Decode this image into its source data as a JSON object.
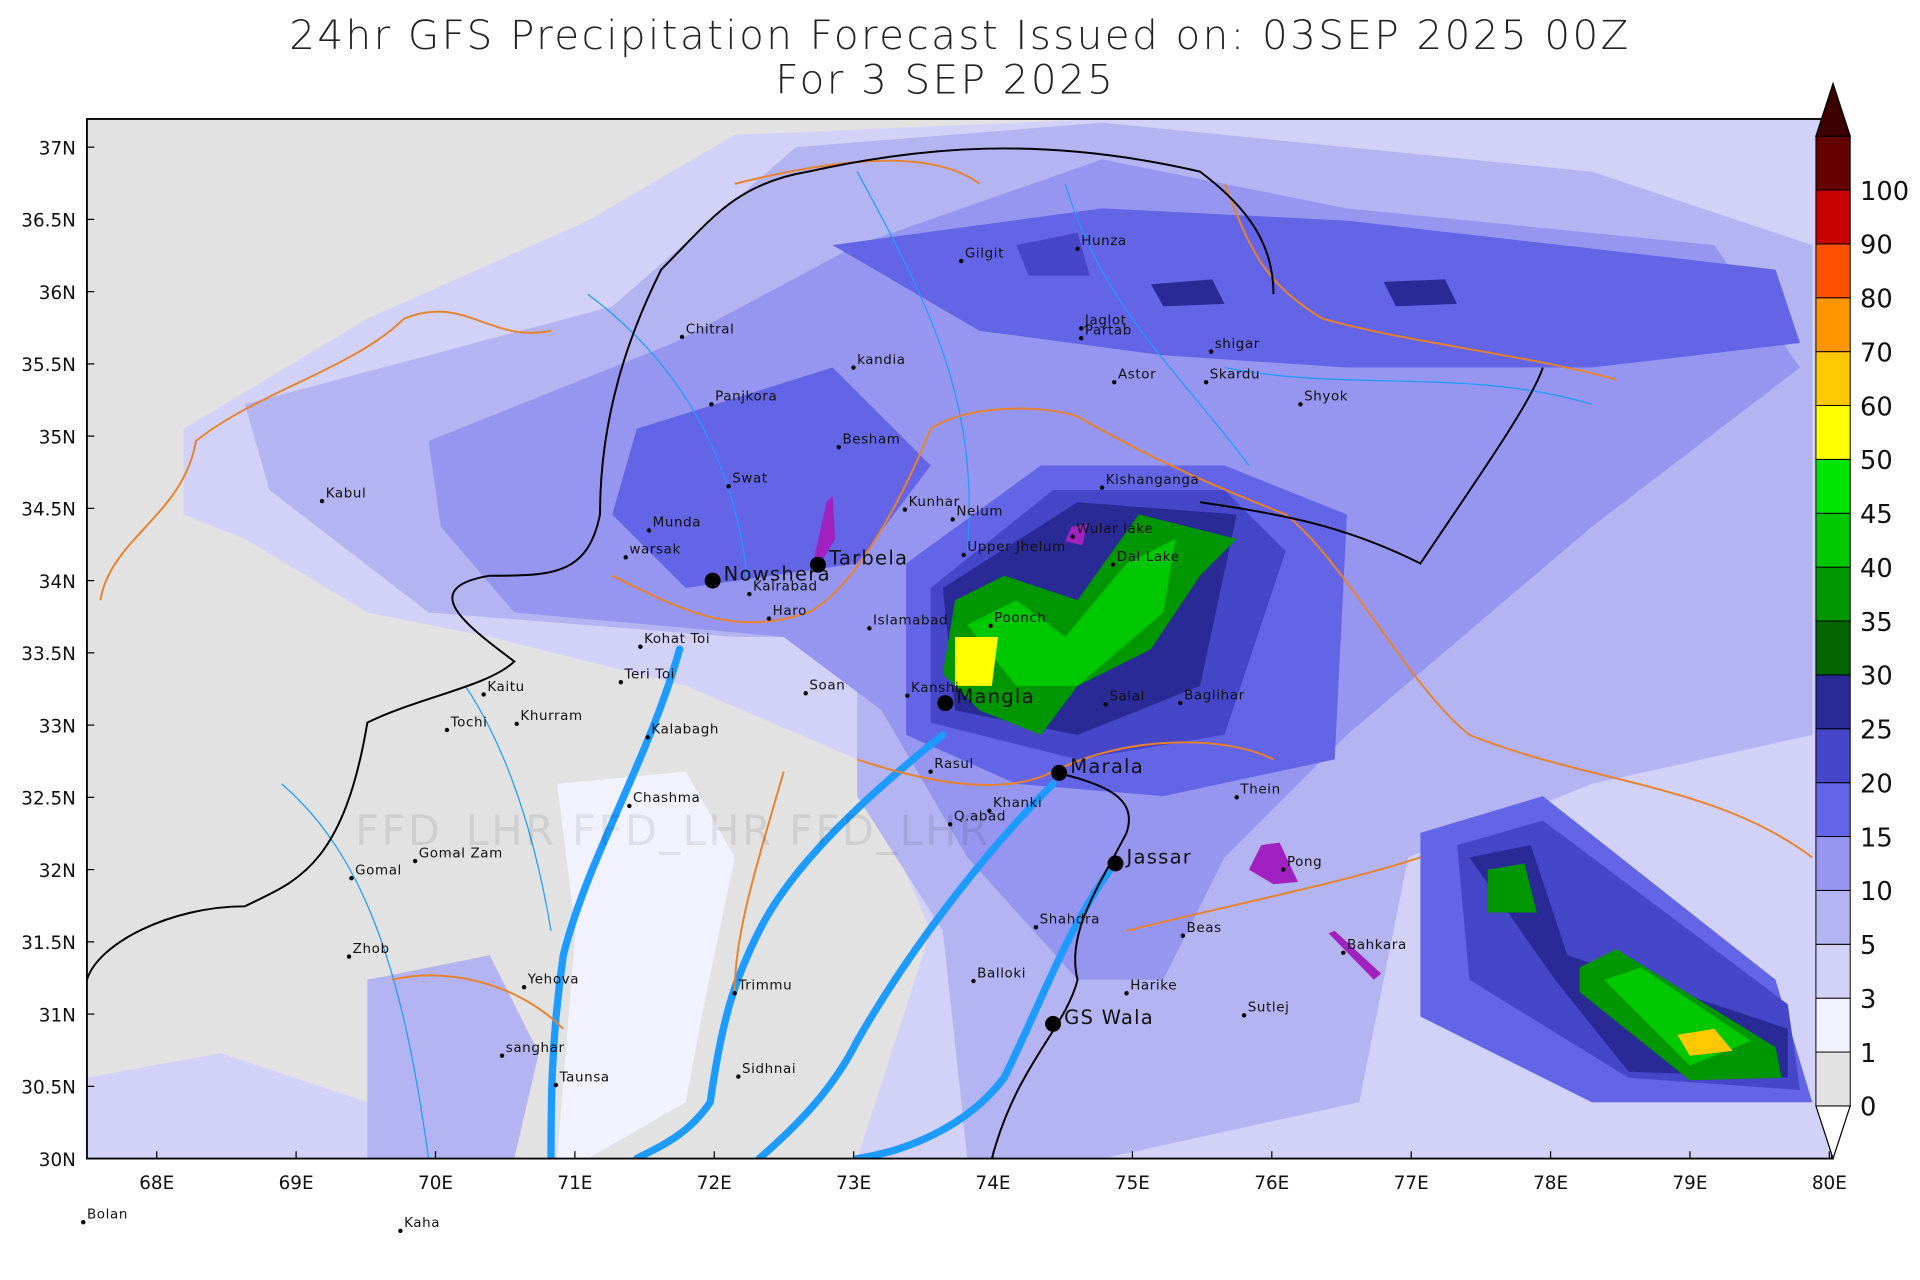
{
  "header": {
    "title_line1": "24hr GFS Precipitation Forecast Issued on:  03SEP 2025 00Z",
    "title_line2": "For 3 SEP 2025"
  },
  "axes": {
    "x_labels": [
      "68E",
      "69E",
      "70E",
      "71E",
      "72E",
      "73E",
      "74E",
      "75E",
      "76E",
      "77E",
      "78E",
      "79E",
      "80E"
    ],
    "y_labels": [
      "30N",
      "30.5N",
      "31N",
      "31.5N",
      "32N",
      "32.5N",
      "33N",
      "33.5N",
      "34N",
      "34.5N",
      "35N",
      "35.5N",
      "36N",
      "36.5N",
      "37N"
    ]
  },
  "colorbar": {
    "levels": [
      0,
      1,
      3,
      5,
      10,
      15,
      20,
      25,
      30,
      35,
      40,
      45,
      50,
      60,
      70,
      80,
      90,
      100
    ],
    "colors": [
      "#e2e2e2",
      "#f2f2ff",
      "#d2d2f8",
      "#b4b4f2",
      "#9696f0",
      "#6464e6",
      "#4646c8",
      "#2a2a96",
      "#006400",
      "#009600",
      "#00c800",
      "#00e600",
      "#ffff00",
      "#ffc800",
      "#ff9600",
      "#ff5000",
      "#c80000",
      "#640000"
    ],
    "above_color": "#3c0000",
    "below_color": "#ffffff"
  },
  "watermark": "FFD_LHR FFD_LHR FFD_LHR",
  "places": [
    "Gilgit",
    "Hunza",
    "Chitral",
    "kandia",
    "Jaglot",
    "Partab",
    "shigar",
    "Skardu",
    "Astor",
    "Shyok",
    "Panjkora",
    "Besham",
    "Kabul",
    "Swat",
    "Kunhar",
    "Nelum",
    "Kishanganga",
    "Munda",
    "Wular lake",
    "warsak",
    "Upper Jhelum",
    "Dal Lake",
    "Nowshera",
    "Tarbela",
    "Kalrabad",
    "Haro",
    "Islamabad",
    "Poonch",
    "Kohat Toi",
    "Teri Toi",
    "Soan",
    "Kaitu",
    "Kanshi",
    "Mangla",
    "Salal",
    "Baglihar",
    "Khurram",
    "Tochi",
    "Kalabagh",
    "Rasul",
    "Marala",
    "Chashma",
    "Thein",
    "Khanki",
    "Q.abad",
    "Jassar",
    "Pong",
    "Gomal Zam",
    "Gomal",
    "Shahdra",
    "Beas",
    "Bahkara",
    "Zhob",
    "Balloki",
    "Trimmu",
    "Yehova",
    "Harike",
    "GS Wala",
    "Sutlej",
    "sanghar",
    "Taunsa",
    "Sidhnai",
    "Bolan",
    "Kaha"
  ]
}
